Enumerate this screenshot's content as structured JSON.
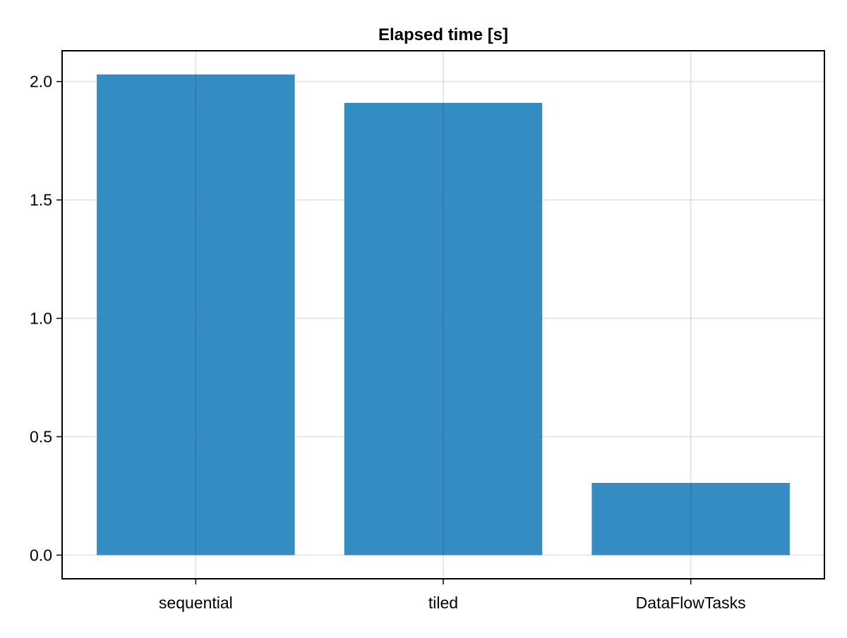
{
  "chart_data": {
    "type": "bar",
    "title": "Elapsed time [s]",
    "xlabel": "",
    "ylabel": "",
    "categories": [
      "sequential",
      "tiled",
      "DataFlowTasks"
    ],
    "values": [
      2.03,
      1.91,
      0.305
    ],
    "ylim": [
      -0.1,
      2.13
    ],
    "yticks": [
      0.0,
      0.5,
      1.0,
      1.5,
      2.0
    ],
    "ytick_labels": [
      "0.0",
      "0.5",
      "1.0",
      "1.5",
      "2.0"
    ],
    "grid": true,
    "bar_color": "#1f7fbb",
    "bar_opacity": 0.9
  }
}
